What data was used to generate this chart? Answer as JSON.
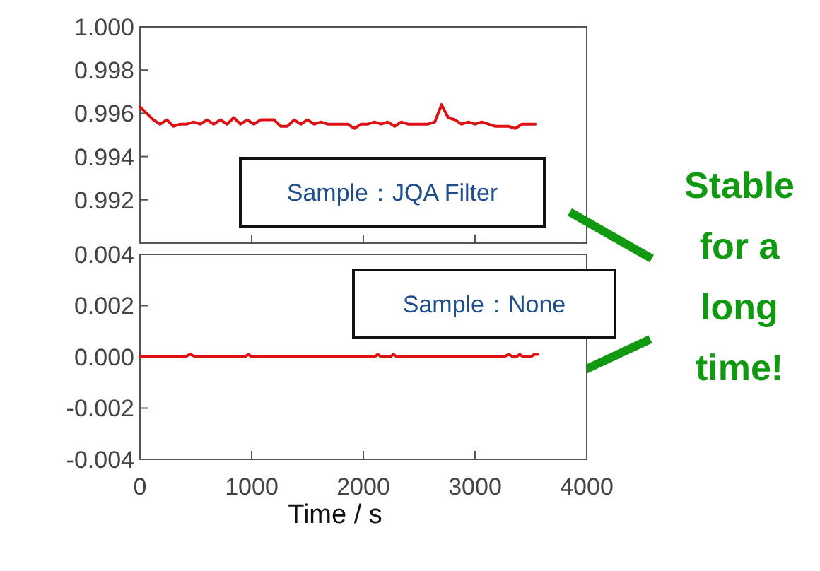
{
  "chart_data": [
    {
      "type": "line",
      "xlim": [
        0,
        4000
      ],
      "xticks": [
        0,
        1000,
        2000,
        3000,
        4000
      ],
      "ylim": [
        0.99,
        1.0
      ],
      "yticks": [
        {
          "value": 0.992,
          "label": "0.992"
        },
        {
          "value": 0.994,
          "label": "0.994"
        },
        {
          "value": 0.996,
          "label": "0.996"
        },
        {
          "value": 0.998,
          "label": "0.998"
        },
        {
          "value": 1.0,
          "label": "1.000"
        }
      ],
      "tick_labels": "y",
      "annotations": [
        "Sample：JQA Filter",
        "Stable for a long time!"
      ],
      "series": [
        {
          "color": "#dd1111",
          "x": [
            0,
            60,
            120,
            180,
            240,
            300,
            360,
            420,
            480,
            540,
            600,
            660,
            720,
            780,
            840,
            900,
            960,
            1020,
            1080,
            1140,
            1200,
            1260,
            1320,
            1380,
            1440,
            1500,
            1560,
            1620,
            1680,
            1740,
            1800,
            1860,
            1920,
            1980,
            2040,
            2100,
            2160,
            2220,
            2280,
            2340,
            2400,
            2460,
            2520,
            2580,
            2640,
            2700,
            2760,
            2820,
            2880,
            2940,
            3000,
            3060,
            3120,
            3180,
            3240,
            3300,
            3360,
            3420,
            3480,
            3540
          ],
          "values": [
            0.9963,
            0.996,
            0.9957,
            0.9955,
            0.9957,
            0.9954,
            0.9955,
            0.9955,
            0.9956,
            0.9955,
            0.9957,
            0.9955,
            0.9957,
            0.9955,
            0.9958,
            0.9955,
            0.9957,
            0.9955,
            0.9957,
            0.9957,
            0.9957,
            0.9954,
            0.9954,
            0.9957,
            0.9955,
            0.9957,
            0.9955,
            0.9956,
            0.9955,
            0.9955,
            0.9955,
            0.9955,
            0.9953,
            0.9955,
            0.9955,
            0.9956,
            0.9955,
            0.9956,
            0.9954,
            0.9956,
            0.9955,
            0.9955,
            0.9955,
            0.9955,
            0.9956,
            0.9964,
            0.9958,
            0.9957,
            0.9955,
            0.9956,
            0.9955,
            0.9956,
            0.9955,
            0.9954,
            0.9954,
            0.9954,
            0.9953,
            0.9955,
            0.9955,
            0.9955
          ]
        }
      ]
    },
    {
      "type": "line",
      "xlim": [
        0,
        4000
      ],
      "xticks": [
        0,
        1000,
        2000,
        3000,
        4000
      ],
      "ylim": [
        -0.004,
        0.004
      ],
      "yticks": [
        {
          "value": -0.004,
          "label": "-0.004"
        },
        {
          "value": -0.002,
          "label": "-0.002"
        },
        {
          "value": 0,
          "label": "0.000"
        },
        {
          "value": 0.002,
          "label": "0.002"
        },
        {
          "value": 0.004,
          "label": "0.004"
        }
      ],
      "xlabel": "Time / s",
      "annotations": [
        "Sample：None"
      ],
      "series": [
        {
          "color": "#dd1111",
          "x": [
            0,
            400,
            450,
            500,
            940,
            970,
            1000,
            2100,
            2130,
            2160,
            2240,
            2270,
            2300,
            3260,
            3300,
            3340,
            3370,
            3400,
            3430,
            3500,
            3530,
            3560
          ],
          "values": [
            0,
            0,
            0.0001,
            0,
            0,
            0.0001,
            0,
            0,
            0.0001,
            0,
            0,
            0.0001,
            0,
            0,
            0.0001,
            0,
            0,
            0.0001,
            0,
            0,
            0.0001,
            0.0001
          ]
        }
      ]
    }
  ]
}
